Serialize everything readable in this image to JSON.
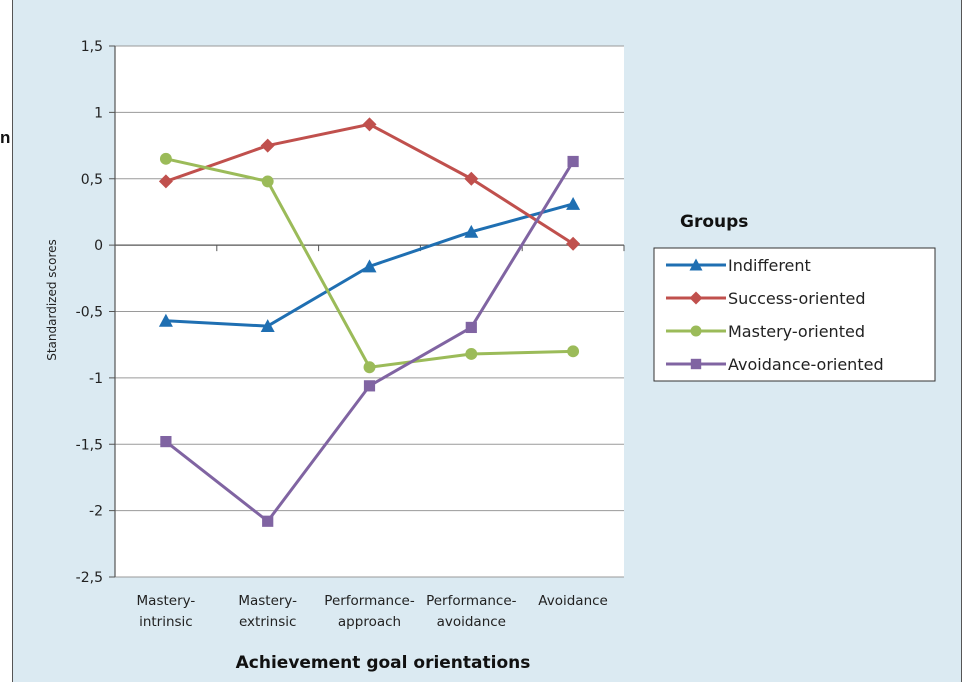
{
  "page": {
    "edge_text": "n"
  },
  "chart_data": {
    "type": "line",
    "xlabel": "Achievement goal orientations",
    "ylabel": "Standardized scores",
    "ylim": [
      -2.5,
      1.5
    ],
    "yticks": [
      "1,5",
      "1",
      "0,5",
      "0",
      "-0,5",
      "-1",
      "-1,5",
      "-2",
      "-2,5"
    ],
    "ytick_values": [
      1.5,
      1,
      0.5,
      0,
      -0.5,
      -1,
      -1.5,
      -2,
      -2.5
    ],
    "categories": [
      [
        "Mastery-",
        "intrinsic"
      ],
      [
        "Mastery-",
        "extrinsic"
      ],
      [
        "Performance-",
        "approach"
      ],
      [
        "Performance-",
        "avoidance"
      ],
      [
        "Avoidance"
      ]
    ],
    "grid": true,
    "legend": {
      "title": "Groups",
      "placement": "right"
    },
    "series": [
      {
        "name": "Indifferent",
        "color": "#1f6fb2",
        "marker": "triangle",
        "values": [
          -0.57,
          -0.61,
          -0.16,
          0.1,
          0.31
        ]
      },
      {
        "name": "Success-oriented",
        "color": "#c0504d",
        "marker": "diamond",
        "values": [
          0.48,
          0.75,
          0.91,
          0.5,
          0.01
        ]
      },
      {
        "name": "Mastery-oriented",
        "color": "#9bbb59",
        "marker": "circle",
        "values": [
          0.65,
          0.48,
          -0.92,
          -0.82,
          -0.8
        ]
      },
      {
        "name": "Avoidance-oriented",
        "color": "#8064a2",
        "marker": "square",
        "values": [
          -1.48,
          -2.08,
          -1.06,
          -0.62,
          0.63
        ]
      }
    ]
  }
}
